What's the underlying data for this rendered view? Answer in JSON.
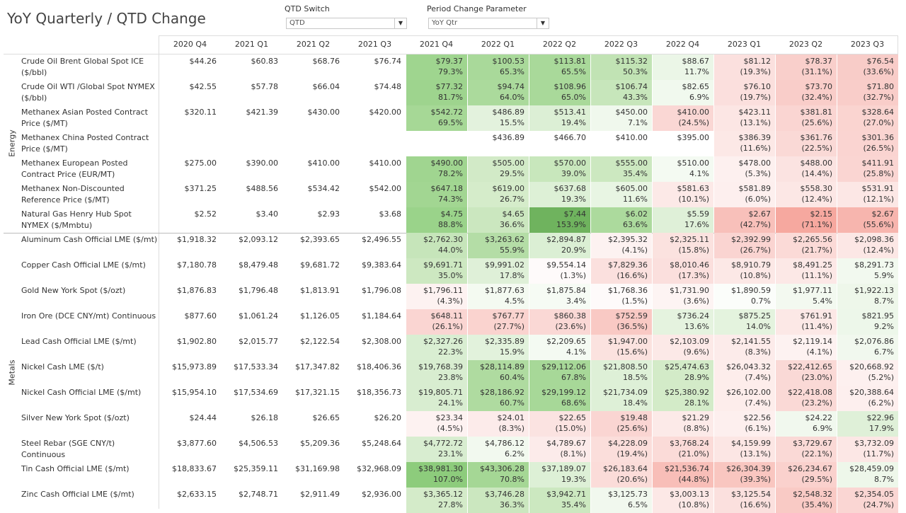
{
  "title": "YoY Quarterly / QTD Change",
  "filters": {
    "qtd_switch_label": "QTD Switch",
    "qtd_switch_value": "QTD",
    "period_label": "Period Change Parameter",
    "period_value": "YoY Qtr"
  },
  "columns": [
    "2020 Q4",
    "2021 Q1",
    "2021 Q2",
    "2021 Q3",
    "2021 Q4",
    "2022 Q1",
    "2022 Q2",
    "2022 Q3",
    "2022 Q4",
    "2023 Q1",
    "2023 Q2",
    "2023 Q3"
  ],
  "groups": [
    {
      "name": "Energy",
      "rows": [
        {
          "label": "Crude Oil Brent Global Spot ICE ($/bbl)",
          "values": [
            "$44.26",
            "$60.83",
            "$68.76",
            "$76.74",
            "$79.37",
            "$100.53",
            "$113.81",
            "$115.32",
            "$88.67",
            "$81.12",
            "$78.37",
            "$76.54"
          ],
          "pct": [
            "",
            "",
            "",
            "",
            "79.3%",
            "65.3%",
            "65.5%",
            "50.3%",
            "11.7%",
            "(19.3%)",
            "(31.1%)",
            "(33.6%)"
          ],
          "colors": [
            "",
            "",
            "",
            "",
            "#9fd58f",
            "#a9d99a",
            "#a9d99a",
            "#c1e3b4",
            "#ebf6e7",
            "#fbe0de",
            "#f9cfcb",
            "#f8ccc8"
          ]
        },
        {
          "label": "Crude Oil WTI /Global Spot NYMEX ($/bbl)",
          "values": [
            "$42.55",
            "$57.78",
            "$66.04",
            "$74.48",
            "$77.32",
            "$94.74",
            "$108.96",
            "$106.74",
            "$82.65",
            "$76.10",
            "$73.70",
            "$71.80"
          ],
          "pct": [
            "",
            "",
            "",
            "",
            "81.7%",
            "64.0%",
            "65.0%",
            "43.3%",
            "6.9%",
            "(19.7%)",
            "(32.4%)",
            "(32.7%)"
          ],
          "colors": [
            "",
            "",
            "",
            "",
            "#9ed48e",
            "#abda9c",
            "#a9d99a",
            "#c7e6bb",
            "#f1f9ee",
            "#fbdfdd",
            "#f9cdc9",
            "#f9cdc9"
          ]
        },
        {
          "label": "Methanex Asian Posted Contract Price ($/MT)",
          "values": [
            "$320.11",
            "$421.39",
            "$430.00",
            "$420.00",
            "$542.72",
            "$486.89",
            "$513.41",
            "$450.00",
            "$410.00",
            "$423.11",
            "$381.81",
            "$328.64"
          ],
          "pct": [
            "",
            "",
            "",
            "",
            "69.5%",
            "15.5%",
            "19.4%",
            "7.1%",
            "(24.5%)",
            "(13.1%)",
            "(25.6%)",
            "(27.0%)"
          ],
          "colors": [
            "",
            "",
            "",
            "",
            "#a6d896",
            "#e3f2dd",
            "#dcefd5",
            "#f0f8ed",
            "#fad7d4",
            "#fce6e4",
            "#fad5d2",
            "#fad4d0"
          ]
        },
        {
          "label": "Methanex China Posted Contract Price ($/MT)",
          "values": [
            "",
            "",
            "",
            "",
            "",
            "$436.89",
            "$466.70",
            "$410.00",
            "$395.00",
            "$386.39",
            "$361.76",
            "$301.36"
          ],
          "pct": [
            "",
            "",
            "",
            "",
            "",
            "",
            "",
            "",
            "",
            "(11.6%)",
            "(22.5%)",
            "(26.5%)"
          ],
          "colors": [
            "",
            "",
            "",
            "",
            "",
            "",
            "",
            "",
            "",
            "#fce8e6",
            "#fad9d6",
            "#fad4d1"
          ]
        },
        {
          "label": "Methanex European Posted Contract Price (EUR/MT)",
          "values": [
            "$275.00",
            "$390.00",
            "$410.00",
            "$410.00",
            "$490.00",
            "$505.00",
            "$570.00",
            "$555.00",
            "$510.00",
            "$478.00",
            "$488.00",
            "$411.91"
          ],
          "pct": [
            "",
            "",
            "",
            "",
            "78.2%",
            "29.5%",
            "39.0%",
            "35.4%",
            "4.1%",
            "(5.3%)",
            "(14.4%)",
            "(25.8%)"
          ],
          "colors": [
            "",
            "",
            "",
            "",
            "#a0d590",
            "#d2eac7",
            "#c8e7bc",
            "#cce8c0",
            "#f4faf2",
            "#fdf0ef",
            "#fbe3e1",
            "#fad5d2"
          ]
        },
        {
          "label": "Methanex Non-Discounted Reference Price ($/MT)",
          "values": [
            "$371.25",
            "$488.56",
            "$534.42",
            "$542.00",
            "$647.18",
            "$619.00",
            "$637.68",
            "$605.00",
            "$581.63",
            "$581.89",
            "$558.30",
            "$531.91"
          ],
          "pct": [
            "",
            "",
            "",
            "",
            "74.3%",
            "26.7%",
            "19.3%",
            "11.6%",
            "(10.1%)",
            "(6.0%)",
            "(12.4%)",
            "(12.1%)"
          ],
          "colors": [
            "",
            "",
            "",
            "",
            "#a2d692",
            "#d5ecca",
            "#ddf0d6",
            "#e8f5e3",
            "#fce9e7",
            "#fdefee",
            "#fce7e5",
            "#fce7e5"
          ]
        },
        {
          "label": "Natural Gas Henry Hub Spot NYMEX ($/Mmbtu)",
          "values": [
            "$2.52",
            "$3.40",
            "$2.93",
            "$3.68",
            "$4.75",
            "$4.65",
            "$7.44",
            "$6.02",
            "$5.59",
            "$2.67",
            "$2.15",
            "$2.67"
          ],
          "pct": [
            "",
            "",
            "",
            "",
            "88.8%",
            "36.6%",
            "153.9%",
            "63.6%",
            "17.6%",
            "(42.7%)",
            "(71.1%)",
            "(55.6%)"
          ],
          "colors": [
            "",
            "",
            "",
            "",
            "#9ad38a",
            "#cbe7bf",
            "#6fb35e",
            "#acda9d",
            "#dff0d8",
            "#f8c0ba",
            "#f6a89f",
            "#f7b5ae"
          ]
        }
      ]
    },
    {
      "name": "Metals",
      "rows": [
        {
          "label": "Aluminum Cash Official LME ($/mt)",
          "values": [
            "$1,918.32",
            "$2,093.12",
            "$2,393.65",
            "$2,496.55",
            "$2,762.30",
            "$3,263.62",
            "$2,894.87",
            "$2,395.32",
            "$2,325.11",
            "$2,392.99",
            "$2,265.56",
            "$2,098.36"
          ],
          "pct": [
            "",
            "",
            "",
            "",
            "44.0%",
            "55.9%",
            "20.9%",
            "(4.1%)",
            "(15.8%)",
            "(26.7%)",
            "(21.7%)",
            "(12.4%)"
          ],
          "colors": [
            "",
            "",
            "",
            "",
            "#c6e5ba",
            "#b4dda6",
            "#dbefd4",
            "#fdf2f1",
            "#fbe2df",
            "#fad4d1",
            "#fbdad7",
            "#fce7e5"
          ]
        },
        {
          "label": "Copper Cash Official LME ($/mt)",
          "values": [
            "$7,180.78",
            "$8,479.48",
            "$9,681.72",
            "$9,383.64",
            "$9,691.71",
            "$9,991.02",
            "$9,554.14",
            "$7,829.36",
            "$8,010.46",
            "$8,910.79",
            "$8,491.25",
            "$8,291.73"
          ],
          "pct": [
            "",
            "",
            "",
            "",
            "35.0%",
            "17.8%",
            "(1.3%)",
            "(16.6%)",
            "(17.3%)",
            "(10.8%)",
            "(11.1%)",
            "5.9%"
          ],
          "colors": [
            "",
            "",
            "",
            "",
            "#cde8c1",
            "#dff0d8",
            "#fefafa",
            "#fbe0de",
            "#fbdfdd",
            "#fce8e6",
            "#fce8e6",
            "#f2f9ef"
          ]
        },
        {
          "label": "Gold New York Spot ($/ozt)",
          "values": [
            "$1,876.83",
            "$1,796.48",
            "$1,813.91",
            "$1,796.08",
            "$1,796.11",
            "$1,877.63",
            "$1,875.84",
            "$1,768.36",
            "$1,731.90",
            "$1,890.59",
            "$1,977.11",
            "$1,922.13"
          ],
          "pct": [
            "",
            "",
            "",
            "",
            "(4.3%)",
            "4.5%",
            "3.4%",
            "(1.5%)",
            "(3.6%)",
            "0.7%",
            "5.4%",
            "8.7%"
          ],
          "colors": [
            "",
            "",
            "",
            "",
            "#fdf2f1",
            "#f4faf1",
            "#f6fbf4",
            "#fefafa",
            "#fdf4f3",
            "#fbfdfa",
            "#f3f9f0",
            "#eef7ea"
          ]
        },
        {
          "label": "Iron Ore (DCE CNY/mt) Continuous",
          "values": [
            "$877.60",
            "$1,061.24",
            "$1,126.05",
            "$1,184.64",
            "$648.11",
            "$767.77",
            "$860.38",
            "$752.59",
            "$736.24",
            "$875.25",
            "$761.91",
            "$821.95"
          ],
          "pct": [
            "",
            "",
            "",
            "",
            "(26.1%)",
            "(27.7%)",
            "(23.6%)",
            "(36.5%)",
            "13.6%",
            "14.0%",
            "(11.4%)",
            "9.2%"
          ],
          "colors": [
            "",
            "",
            "",
            "",
            "#fad5d2",
            "#fad3cf",
            "#fad8d5",
            "#f9c9c4",
            "#e5f3df",
            "#e4f3de",
            "#fce8e6",
            "#edf7ea"
          ]
        },
        {
          "label": "Lead Cash Official LME ($/mt)",
          "values": [
            "$1,902.80",
            "$2,015.77",
            "$2,122.54",
            "$2,308.00",
            "$2,327.26",
            "$2,335.89",
            "$2,209.65",
            "$1,947.00",
            "$2,103.09",
            "$2,141.55",
            "$2,119.14",
            "$2,076.86"
          ],
          "pct": [
            "",
            "",
            "",
            "",
            "22.3%",
            "15.9%",
            "4.1%",
            "(15.6%)",
            "(9.6%)",
            "(8.3%)",
            "(4.1%)",
            "6.7%"
          ],
          "colors": [
            "",
            "",
            "",
            "",
            "#d9eed2",
            "#e2f2dc",
            "#f4faf2",
            "#fbe2df",
            "#fce9e7",
            "#fcebea",
            "#fdf2f1",
            "#f1f8ee"
          ]
        },
        {
          "label": "Nickel Cash LME ($/t)",
          "values": [
            "$15,973.89",
            "$17,533.34",
            "$17,347.82",
            "$18,406.36",
            "$19,768.39",
            "$28,114.89",
            "$29,112.06",
            "$21,808.50",
            "$25,474.63",
            "$26,043.32",
            "$22,412.65",
            "$20,668.92"
          ],
          "pct": [
            "",
            "",
            "",
            "",
            "23.8%",
            "60.4%",
            "67.8%",
            "18.5%",
            "28.9%",
            "(7.4%)",
            "(23.0%)",
            "(5.2%)"
          ],
          "colors": [
            "",
            "",
            "",
            "",
            "#d8edd0",
            "#afdba0",
            "#a7d898",
            "#def0d7",
            "#d3ebc8",
            "#fdedeb",
            "#fad9d6",
            "#fdf0ef"
          ]
        },
        {
          "label": "Nickel Cash Official LME ($/mt)",
          "values": [
            "$15,954.10",
            "$17,534.69",
            "$17,321.15",
            "$18,356.73",
            "$19,805.71",
            "$28,186.92",
            "$29,199.12",
            "$21,734.09",
            "$25,380.92",
            "$26,102.00",
            "$22,418.08",
            "$20,388.64"
          ],
          "pct": [
            "",
            "",
            "",
            "",
            "24.1%",
            "60.7%",
            "68.6%",
            "18.4%",
            "28.1%",
            "(7.4%)",
            "(23.2%)",
            "(6.2%)"
          ],
          "colors": [
            "",
            "",
            "",
            "",
            "#d8edd0",
            "#afdba0",
            "#a7d898",
            "#def0d7",
            "#d3ebc8",
            "#fdedeb",
            "#fad9d6",
            "#fdefee"
          ]
        },
        {
          "label": "Silver New York Spot ($/ozt)",
          "values": [
            "$24.44",
            "$26.18",
            "$26.65",
            "$26.20",
            "$23.34",
            "$24.01",
            "$22.65",
            "$19.48",
            "$21.29",
            "$22.56",
            "$24.22",
            "$22.96"
          ],
          "pct": [
            "",
            "",
            "",
            "",
            "(4.5%)",
            "(8.3%)",
            "(15.0%)",
            "(25.6%)",
            "(8.8%)",
            "(6.1%)",
            "6.9%",
            "17.9%"
          ],
          "colors": [
            "",
            "",
            "",
            "",
            "#fdf2f1",
            "#fcebea",
            "#fbe3e1",
            "#fad5d2",
            "#fceae8",
            "#fdefee",
            "#f1f8ee",
            "#dff0d8"
          ]
        },
        {
          "label": "Steel Rebar (SGE CNY/t) Continuous",
          "values": [
            "$3,877.60",
            "$4,506.53",
            "$5,209.36",
            "$5,248.64",
            "$4,772.72",
            "$4,786.12",
            "$4,789.67",
            "$4,228.09",
            "$3,768.24",
            "$4,159.99",
            "$3,729.67",
            "$3,732.09"
          ],
          "pct": [
            "",
            "",
            "",
            "",
            "23.1%",
            "6.2%",
            "(8.1%)",
            "(19.4%)",
            "(21.0%)",
            "(13.1%)",
            "(22.1%)",
            "(11.7%)"
          ],
          "colors": [
            "",
            "",
            "",
            "",
            "#d8edd0",
            "#f2f9ef",
            "#fcebea",
            "#fbdedb",
            "#fbdbd8",
            "#fce6e4",
            "#fad9d6",
            "#fce7e5"
          ]
        },
        {
          "label": "Tin Cash Official LME ($/mt)",
          "values": [
            "$18,833.67",
            "$25,359.11",
            "$31,169.98",
            "$32,968.09",
            "$38,981.30",
            "$43,306.28",
            "$37,189.07",
            "$26,183.64",
            "$21,536.74",
            "$26,304.39",
            "$26,234.67",
            "$28,459.09"
          ],
          "pct": [
            "",
            "",
            "",
            "",
            "107.0%",
            "70.8%",
            "19.3%",
            "(20.6%)",
            "(44.8%)",
            "(39.3%)",
            "(29.5%)",
            "8.7%"
          ],
          "colors": [
            "",
            "",
            "",
            "",
            "#8dcc7c",
            "#a5d795",
            "#ddf0d6",
            "#fbdcd9",
            "#f8beb8",
            "#f9c6c0",
            "#fad1cd",
            "#eef7ea"
          ]
        },
        {
          "label": "Zinc Cash Official LME ($/mt)",
          "values": [
            "$2,633.15",
            "$2,748.71",
            "$2,911.49",
            "$2,936.00",
            "$3,365.12",
            "$3,746.28",
            "$3,942.71",
            "$3,125.73",
            "$3,003.13",
            "$3,125.54",
            "$2,548.32",
            "$2,354.05"
          ],
          "pct": [
            "",
            "",
            "",
            "",
            "27.8%",
            "36.3%",
            "35.4%",
            "6.5%",
            "(10.8%)",
            "(16.6%)",
            "(35.4%)",
            "(24.7%)"
          ],
          "colors": [
            "",
            "",
            "",
            "",
            "#d4ebc9",
            "#cbe7bf",
            "#cce8c0",
            "#f1f8ee",
            "#fce8e6",
            "#fbe0de",
            "#f9cac5",
            "#fad6d3"
          ]
        }
      ]
    }
  ]
}
